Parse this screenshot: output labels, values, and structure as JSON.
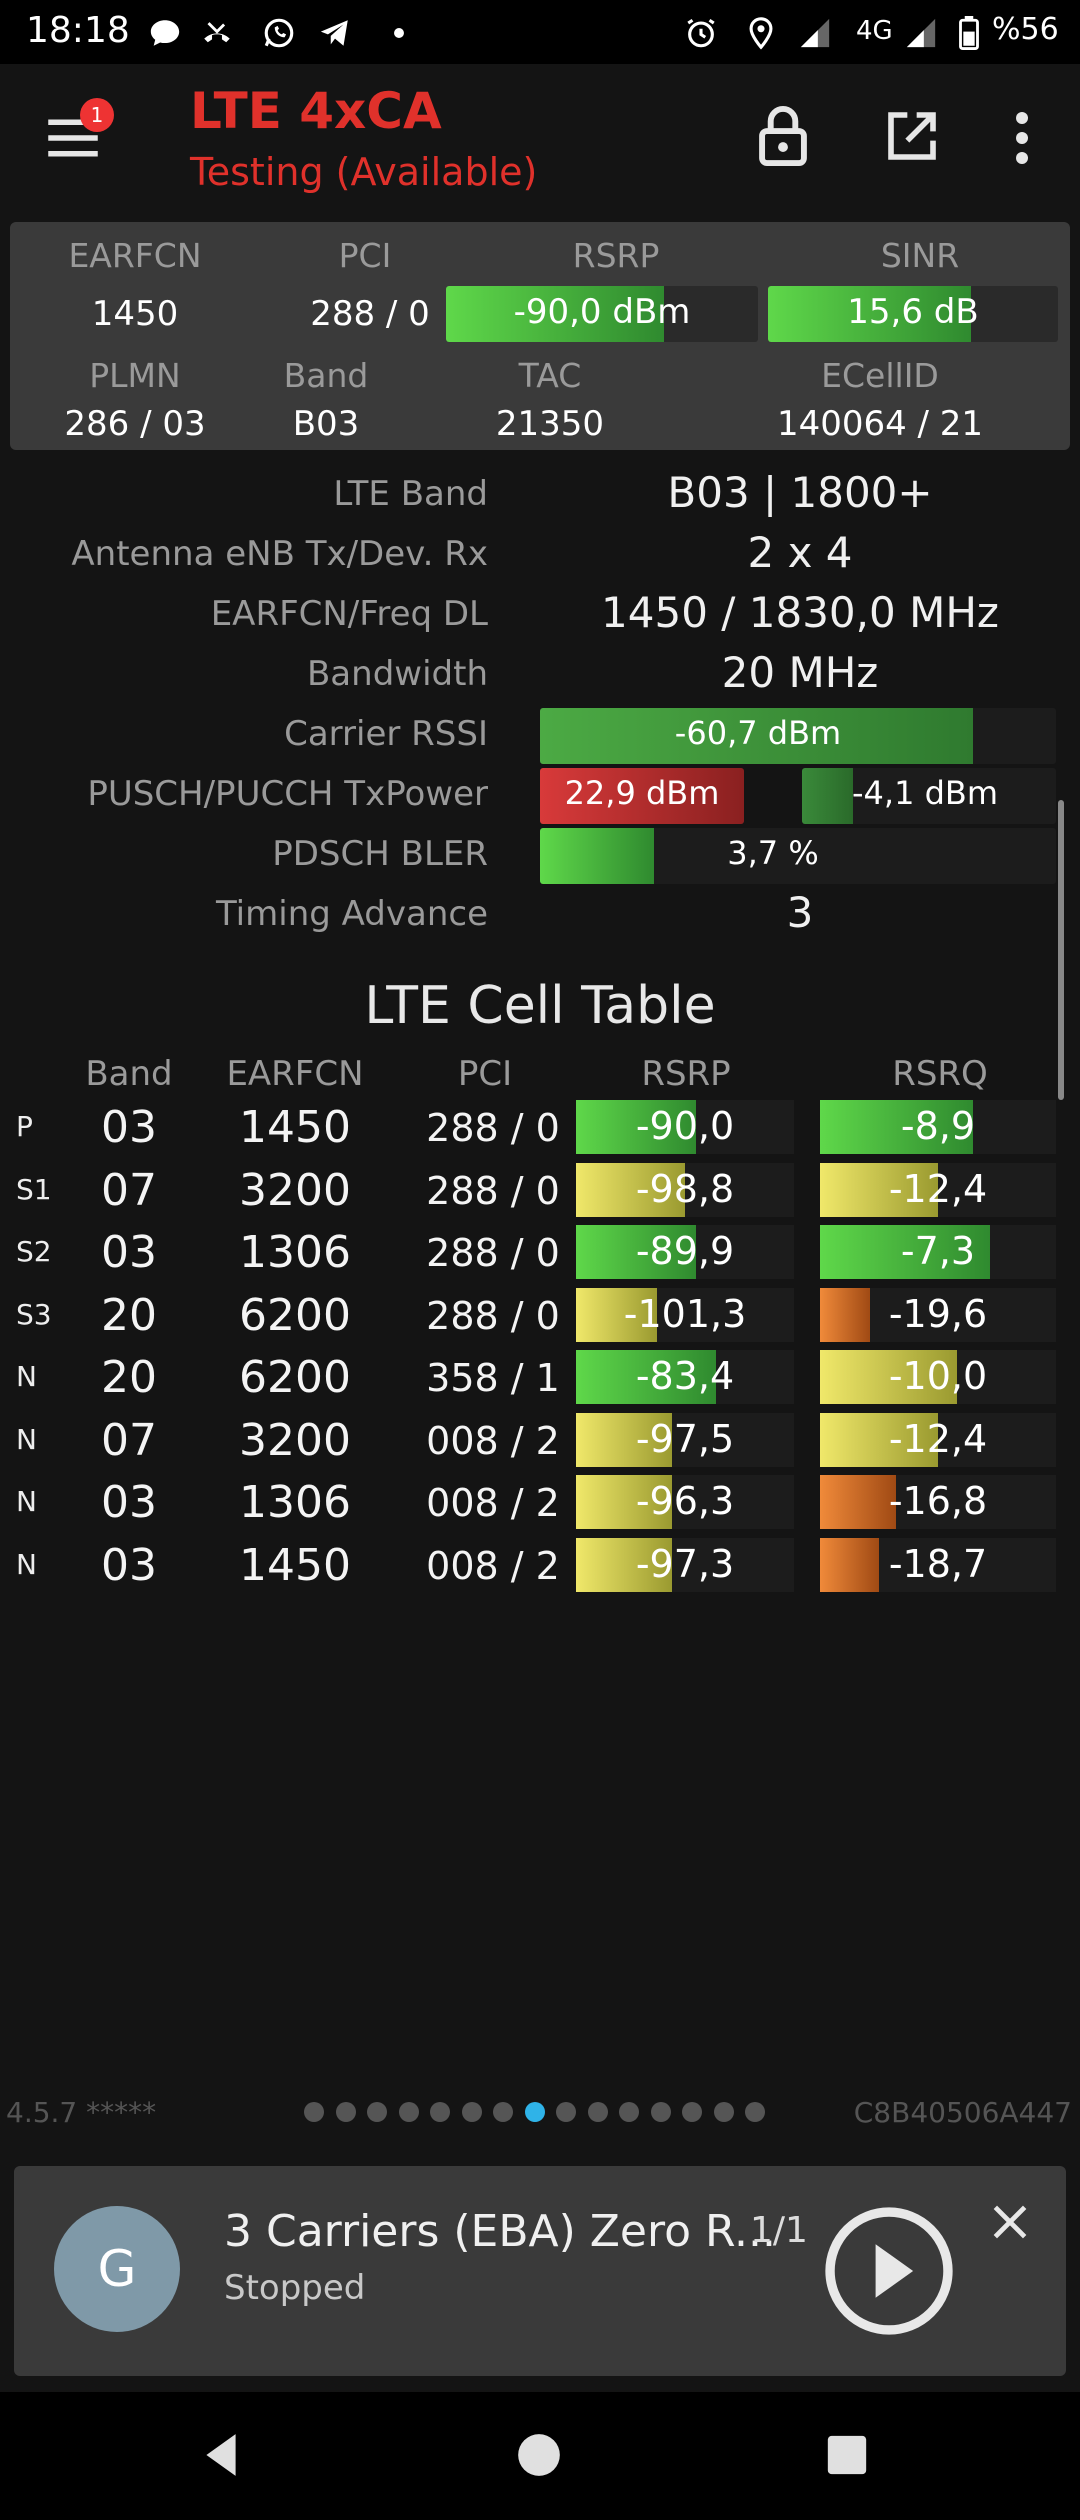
{
  "status_bar": {
    "time": "18:18",
    "network": "4G",
    "battery": "%56",
    "icons": [
      "chat-icon",
      "missed-call-icon",
      "whatsapp-icon",
      "telegram-icon",
      "more-dot-icon",
      "alarm-icon",
      "location-icon",
      "signal-icon",
      "signal-icon",
      "battery-icon"
    ]
  },
  "app_bar": {
    "title": "LTE 4xCA",
    "subtitle": "Testing (Available)",
    "menu_badge": "1",
    "icons": [
      "menu-icon",
      "lock-icon",
      "open-external-icon",
      "more-vert-icon"
    ]
  },
  "summary": {
    "headers": {
      "earfcn": "EARFCN",
      "pci": "PCI",
      "rsrp": "RSRP",
      "sinr": "SINR",
      "plmn": "PLMN",
      "band": "Band",
      "tac": "TAC",
      "ecellid": "ECellID"
    },
    "earfcn": "1450",
    "pci": "288 / 0",
    "rsrp": "-90,0 dBm",
    "rsrp_level": 0.7,
    "sinr": "15,6 dB",
    "sinr_level": 0.7,
    "plmn": "286 / 03",
    "band": "B03",
    "tac": "21350",
    "ecellid": "140064 / 21"
  },
  "details": {
    "lte_band_label": "LTE Band",
    "lte_band": "B03 | 1800+",
    "antenna_label": "Antenna eNB Tx/Dev. Rx",
    "antenna": "2 x 4",
    "earfcn_freq_label": "EARFCN/Freq DL",
    "earfcn_freq": "1450 / 1830,0 MHz",
    "bandwidth_label": "Bandwidth",
    "bandwidth": "20 MHz",
    "rssi_label": "Carrier RSSI",
    "rssi": "-60,7 dBm",
    "rssi_level": 0.84,
    "txpower_label": "PUSCH/PUCCH TxPower",
    "pusch": "22,9 dBm",
    "pusch_level": 1.0,
    "pucch": "-4,1 dBm",
    "pucch_level": 0.2,
    "bler_label": "PDSCH BLER",
    "bler": "3,7 %",
    "bler_level": 0.22,
    "ta_label": "Timing Advance",
    "ta": "3"
  },
  "cell_table": {
    "title": "LTE Cell Table",
    "headers": {
      "band": "Band",
      "earfcn": "EARFCN",
      "pci": "PCI",
      "rsrp": "RSRP",
      "rsrq": "RSRQ"
    },
    "rows": [
      {
        "tag": "P",
        "band": "03",
        "earfcn": "1450",
        "pci": "288 / 0",
        "rsrp": "-90,0",
        "rsrp_level": 0.55,
        "rsrp_color": "green",
        "rsrq": "-8,9",
        "rsrq_level": 0.65,
        "rsrq_color": "green"
      },
      {
        "tag": "S1",
        "band": "07",
        "earfcn": "3200",
        "pci": "288 / 0",
        "rsrp": "-98,8",
        "rsrp_level": 0.5,
        "rsrp_color": "yellow",
        "rsrq": "-12,4",
        "rsrq_level": 0.5,
        "rsrq_color": "yellow"
      },
      {
        "tag": "S2",
        "band": "03",
        "earfcn": "1306",
        "pci": "288 / 0",
        "rsrp": "-89,9",
        "rsrp_level": 0.55,
        "rsrp_color": "green",
        "rsrq": "-7,3",
        "rsrq_level": 0.72,
        "rsrq_color": "green"
      },
      {
        "tag": "S3",
        "band": "20",
        "earfcn": "6200",
        "pci": "288 / 0",
        "rsrp": "-101,3",
        "rsrp_level": 0.37,
        "rsrp_color": "yellow",
        "rsrq": "-19,6",
        "rsrq_level": 0.21,
        "rsrq_color": "orange"
      },
      {
        "tag": "N",
        "band": "20",
        "earfcn": "6200",
        "pci": "358 / 1",
        "rsrp": "-83,4",
        "rsrp_level": 0.64,
        "rsrp_color": "green",
        "rsrq": "-10,0",
        "rsrq_level": 0.58,
        "rsrq_color": "yellow"
      },
      {
        "tag": "N",
        "band": "07",
        "earfcn": "3200",
        "pci": "008 / 2",
        "rsrp": "-97,5",
        "rsrp_level": 0.44,
        "rsrp_color": "yellow",
        "rsrq": "-12,4",
        "rsrq_level": 0.5,
        "rsrq_color": "yellow"
      },
      {
        "tag": "N",
        "band": "03",
        "earfcn": "1306",
        "pci": "008 / 2",
        "rsrp": "-96,3",
        "rsrp_level": 0.44,
        "rsrp_color": "yellow",
        "rsrq": "-16,8",
        "rsrq_level": 0.32,
        "rsrq_color": "orange"
      },
      {
        "tag": "N",
        "band": "03",
        "earfcn": "1450",
        "pci": "008 / 2",
        "rsrp": "-97,3",
        "rsrp_level": 0.44,
        "rsrp_color": "yellow",
        "rsrq": "-18,7",
        "rsrq_level": 0.25,
        "rsrq_color": "orange"
      }
    ]
  },
  "footer": {
    "version": "4.5.7 *****",
    "device_id": "C8B40506A447",
    "page_count": 15,
    "active_page": 8
  },
  "media": {
    "avatar_letter": "G",
    "title": "3 Carriers (EBA) Zero R...",
    "count": "1/1",
    "status": "Stopped"
  },
  "nav": {
    "icons": [
      "back-icon",
      "home-icon",
      "recents-icon"
    ]
  }
}
